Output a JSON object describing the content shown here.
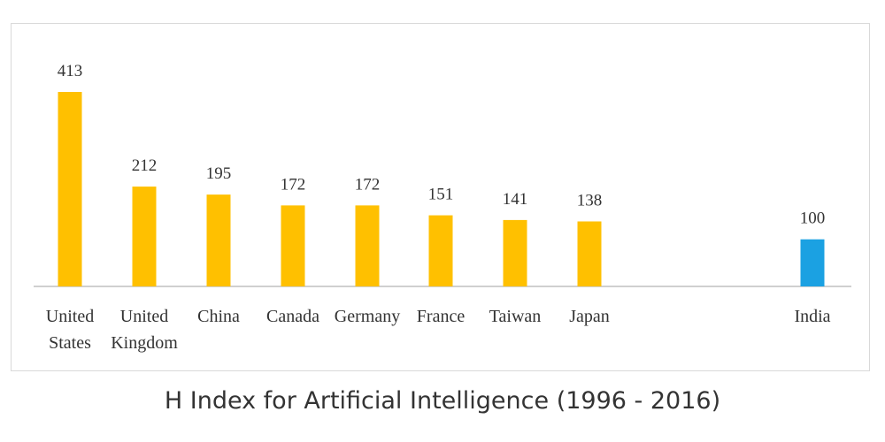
{
  "chart_data": {
    "type": "bar",
    "title": "H Index for Artificial Intelligence (1996 - 2016)",
    "categories": [
      [
        "United",
        "States"
      ],
      [
        "United",
        "Kingdom"
      ],
      [
        "China"
      ],
      [
        "Canada"
      ],
      [
        "Germany"
      ],
      [
        "France"
      ],
      [
        "Taiwan"
      ],
      [
        "Japan"
      ],
      [
        "India"
      ]
    ],
    "values": [
      413,
      212,
      195,
      172,
      172,
      151,
      141,
      138,
      100
    ],
    "colors": [
      "#FFC000",
      "#FFC000",
      "#FFC000",
      "#FFC000",
      "#FFC000",
      "#FFC000",
      "#FFC000",
      "#FFC000",
      "#1BA1E2"
    ],
    "ylim": [
      0,
      413
    ],
    "grid": false,
    "legend": "none",
    "data_labels": true
  }
}
